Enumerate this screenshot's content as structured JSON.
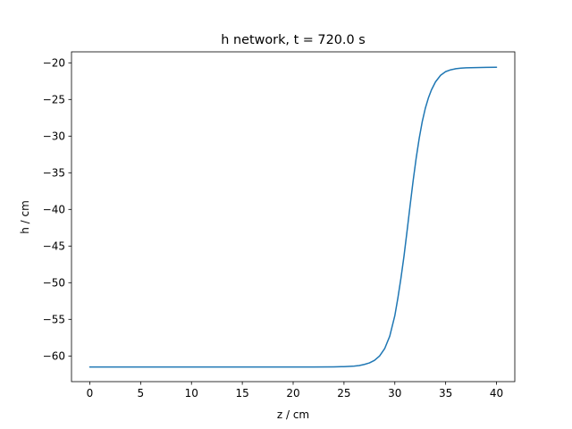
{
  "chart_data": {
    "type": "line",
    "title": "h network, t = 720.0 s",
    "xlabel": "z / cm",
    "ylabel": "h / cm",
    "xlim": [
      -1.8,
      41.8
    ],
    "ylim": [
      -63.5,
      -18.5
    ],
    "xticks": [
      0,
      5,
      10,
      15,
      20,
      25,
      30,
      35,
      40
    ],
    "yticks": [
      -60,
      -55,
      -50,
      -45,
      -40,
      -35,
      -30,
      -25,
      -20
    ],
    "grid": false,
    "series": [
      {
        "color": "#1f77b4",
        "x": [
          0,
          5,
          10,
          15,
          20,
          22,
          24,
          25,
          26,
          26.5,
          27,
          27.5,
          28,
          28.5,
          29,
          29.5,
          30,
          30.3,
          30.6,
          30.9,
          31.2,
          31.5,
          31.8,
          32.1,
          32.4,
          32.7,
          33,
          33.3,
          33.6,
          34,
          34.5,
          35,
          35.5,
          36,
          36.5,
          37,
          38,
          39,
          40
        ],
        "y": [
          -61.5,
          -61.5,
          -61.5,
          -61.5,
          -61.5,
          -61.5,
          -61.48,
          -61.45,
          -61.38,
          -61.3,
          -61.15,
          -60.95,
          -60.6,
          -60.0,
          -59.0,
          -57.3,
          -54.5,
          -52.1,
          -49.4,
          -46.4,
          -43.0,
          -39.5,
          -36.1,
          -33.0,
          -30.3,
          -28.0,
          -26.2,
          -24.8,
          -23.7,
          -22.6,
          -21.7,
          -21.2,
          -20.95,
          -20.8,
          -20.72,
          -20.68,
          -20.65,
          -20.62,
          -20.6
        ]
      }
    ]
  }
}
